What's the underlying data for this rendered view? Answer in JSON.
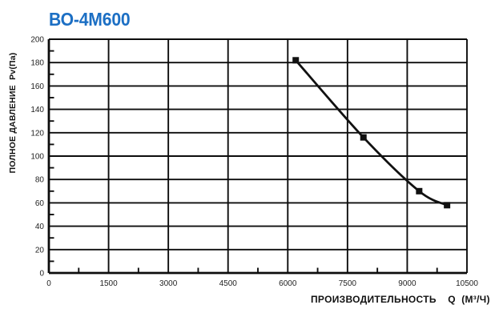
{
  "chart_data": {
    "type": "line",
    "title": "ВО-4М600",
    "title_color": "#1c6fc4",
    "xlabel": "ПРОИЗВОДИТЕЛЬНОСТЬ    Q  (М³/Ч)",
    "ylabel": "ПОЛНОЕ ДАВЛЕНИЕ  Pv(Па)",
    "xlim": [
      0,
      10500
    ],
    "ylim": [
      0,
      200
    ],
    "x_ticks": [
      0,
      1500,
      3000,
      4500,
      6000,
      7500,
      9000,
      10500
    ],
    "y_ticks": [
      0,
      20,
      40,
      60,
      80,
      100,
      120,
      140,
      160,
      180,
      200
    ],
    "x_minor_step": 750,
    "y_minor_step": 10,
    "grid": true,
    "legend": false,
    "line_color": "#111111",
    "grid_color": "#0d0d0d",
    "tick_label_color": "#1f1f1f",
    "series": [
      {
        "name": "ВО-4М600",
        "marker": "square",
        "points": [
          {
            "q": 6200,
            "pv": 182
          },
          {
            "q": 7900,
            "pv": 116
          },
          {
            "q": 9300,
            "pv": 70
          },
          {
            "q": 10000,
            "pv": 58
          }
        ]
      }
    ]
  }
}
